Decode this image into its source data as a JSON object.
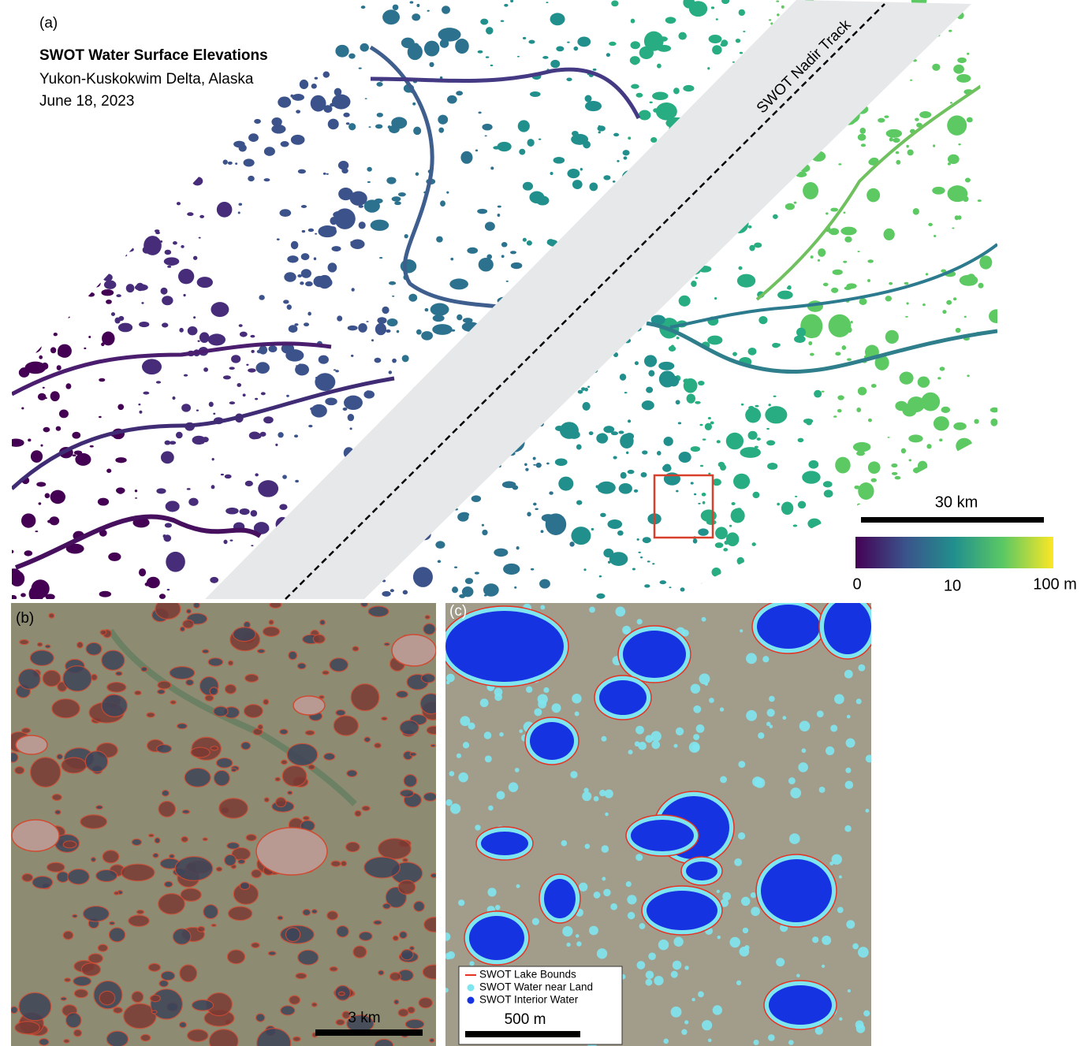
{
  "panel_a": {
    "label": "(a)",
    "title": "SWOT Water Surface Elevations",
    "subtitle": "Yukon-Kuskokwim Delta, Alaska",
    "date": "June 18, 2023",
    "track_label": "SWOT Nadir Track",
    "scale_bar": "30 km",
    "colorbar": {
      "labels": [
        "0",
        "10",
        "100 m"
      ]
    }
  },
  "panel_b": {
    "label": "(b)",
    "scale_bar": "3 km"
  },
  "panel_c": {
    "label": "(c)",
    "legend": [
      "SWOT Lake Bounds",
      "SWOT Water near Land",
      "SWOT Interior Water"
    ],
    "scale_bar": "500 m"
  }
}
